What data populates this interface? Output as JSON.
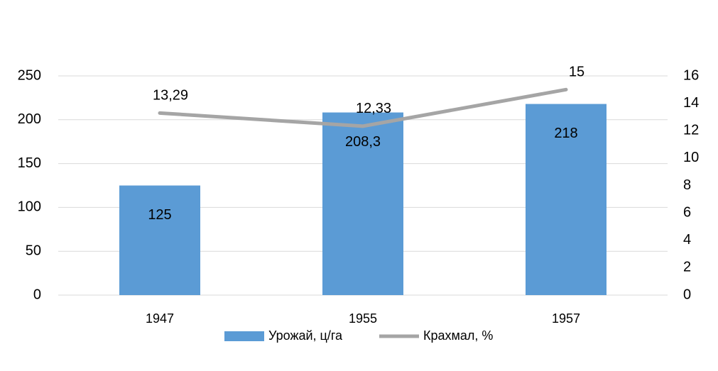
{
  "chart_data": {
    "type": "bar",
    "categories": [
      "1947",
      "1955",
      "1957"
    ],
    "series": [
      {
        "name": "Урожай, ц/га",
        "type": "bar",
        "color": "#5b9bd5",
        "values": [
          125,
          208.3,
          218
        ],
        "value_labels": [
          "125",
          "208,3",
          "218"
        ]
      },
      {
        "name": "Крахмал, %",
        "type": "line",
        "axis": "y2",
        "color": "#a5a5a5",
        "values": [
          13.29,
          12.33,
          15
        ],
        "value_labels": [
          "13,29",
          "12,33",
          "15"
        ]
      }
    ],
    "ylim": [
      0,
      250
    ],
    "yticks": [
      0,
      50,
      100,
      150,
      200,
      250
    ],
    "y2lim": [
      0,
      16
    ],
    "y2ticks": [
      0,
      2,
      4,
      6,
      8,
      10,
      12,
      14,
      16
    ],
    "grid": true
  }
}
